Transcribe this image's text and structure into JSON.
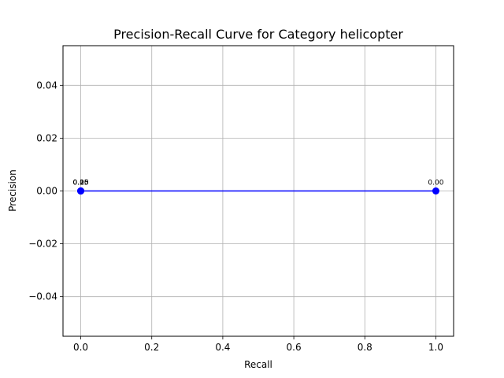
{
  "chart_data": {
    "type": "line",
    "title": "Precision-Recall Curve for Category helicopter",
    "xlabel": "Recall",
    "ylabel": "Precision",
    "xlim": [
      -0.05,
      1.05
    ],
    "ylim": [
      -0.055,
      0.055
    ],
    "x_ticks": [
      0.0,
      0.2,
      0.4,
      0.6,
      0.8,
      1.0
    ],
    "x_tick_labels": [
      "0.0",
      "0.2",
      "0.4",
      "0.6",
      "0.8",
      "1.0"
    ],
    "y_ticks": [
      -0.04,
      -0.02,
      0.0,
      0.02,
      0.04
    ],
    "y_tick_labels": [
      "−0.04",
      "−0.02",
      "0.00",
      "0.02",
      "0.04"
    ],
    "grid": true,
    "series": [
      {
        "color": "#0000ff",
        "marker": "circle",
        "points": [
          {
            "x": 0.0,
            "y": 0.0,
            "label": "0.25"
          },
          {
            "x": 0.0,
            "y": 0.0,
            "label": "0.10"
          },
          {
            "x": 0.0,
            "y": 0.0,
            "label": "0.05"
          },
          {
            "x": 1.0,
            "y": 0.0,
            "label": "0.00"
          }
        ]
      }
    ]
  }
}
